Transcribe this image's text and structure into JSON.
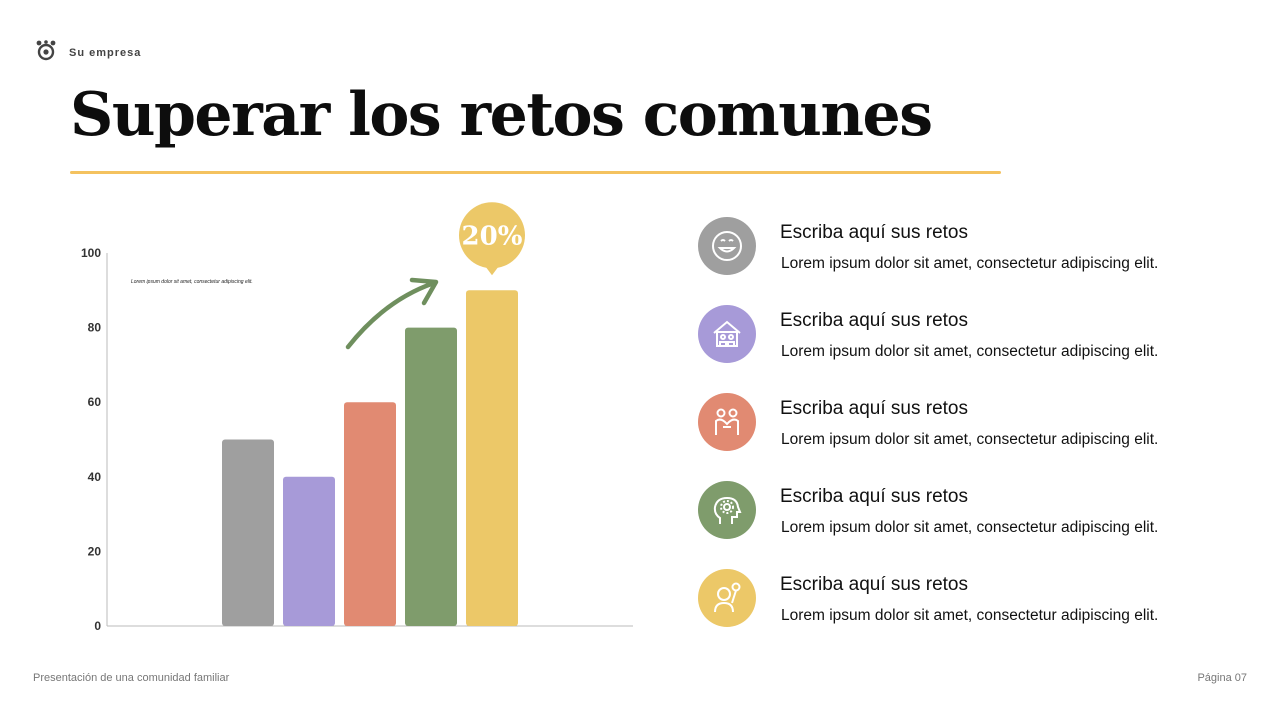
{
  "brand": {
    "name": "Su empresa",
    "icon": "family-logo-icon"
  },
  "title": "Superar los retos comunes",
  "colors": {
    "accent": "#f4c25f",
    "gray": "#9f9f9f",
    "purple": "#a79ad8",
    "salmon": "#e18a72",
    "green": "#7f9c6c",
    "yellow": "#ecc868",
    "arrow": "#6f8f5e"
  },
  "chart_data": {
    "type": "bar",
    "categories": [
      "",
      "",
      "",
      "",
      ""
    ],
    "values": [
      50,
      40,
      60,
      80,
      90
    ],
    "colors": [
      "#9f9f9f",
      "#a79ad8",
      "#e18a72",
      "#7f9c6c",
      "#ecc868"
    ],
    "ylim": [
      0,
      100
    ],
    "yticks": [
      "0",
      "20",
      "40",
      "60",
      "80",
      "100"
    ],
    "annotation": "Lorem ipsum dolor sit amet, consectetur adipiscing elit.",
    "badge": "20%",
    "grid": false
  },
  "items": [
    {
      "title": "Escriba aquí sus retos",
      "text": "Lorem ipsum dolor sit amet, consectetur adipiscing elit.",
      "icon": "smiling-face-icon",
      "color": "#9f9f9f"
    },
    {
      "title": "Escriba aquí sus retos",
      "text": "Lorem ipsum dolor sit amet, consectetur adipiscing elit.",
      "icon": "family-home-icon",
      "color": "#a79ad8"
    },
    {
      "title": "Escriba aquí sus retos",
      "text": "Lorem ipsum dolor sit amet, consectetur adipiscing elit.",
      "icon": "people-hug-icon",
      "color": "#e18a72"
    },
    {
      "title": "Escriba aquí sus retos",
      "text": "Lorem ipsum dolor sit amet, consectetur adipiscing elit.",
      "icon": "mind-gear-icon",
      "color": "#7f9c6c"
    },
    {
      "title": "Escriba aquí sus retos",
      "text": "Lorem ipsum dolor sit amet, consectetur adipiscing elit.",
      "icon": "child-balloon-icon",
      "color": "#ecc868"
    }
  ],
  "footer": {
    "left": "Presentación de una comunidad familiar",
    "right": "Página 07"
  }
}
